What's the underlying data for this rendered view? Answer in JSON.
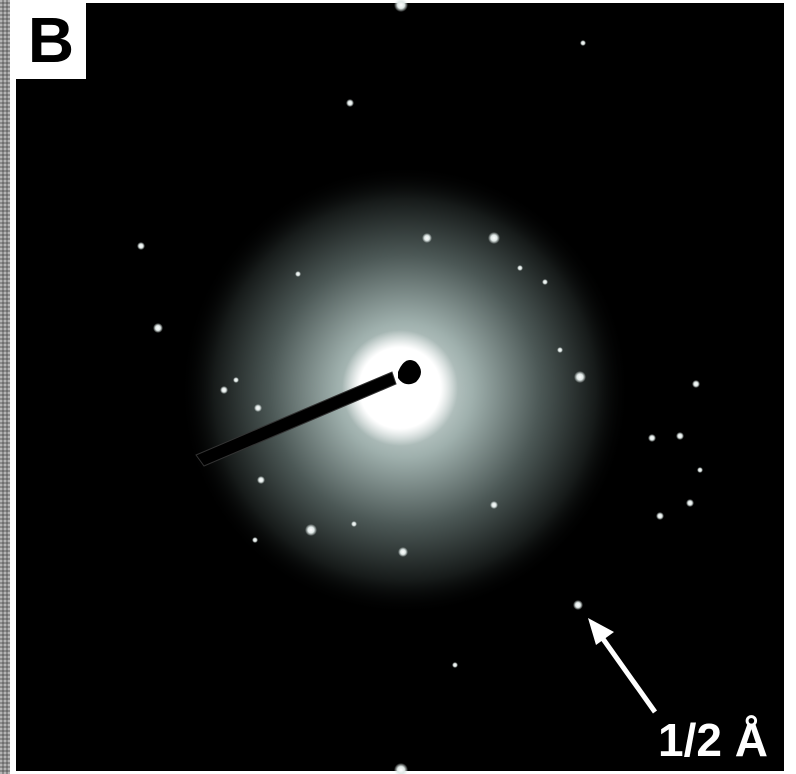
{
  "panel_label": "B",
  "annotation": "1/2 Å"
}
